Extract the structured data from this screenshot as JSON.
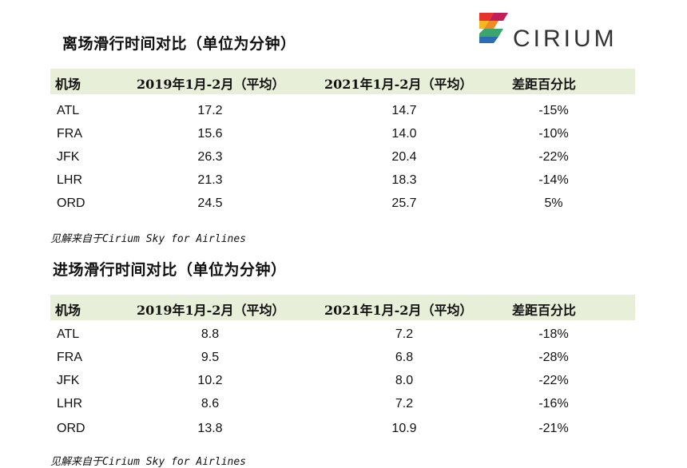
{
  "logo": {
    "text": "CIRIUM",
    "colors": [
      "#e8322e",
      "#f4b71c",
      "#3aa66b",
      "#2b6cb3"
    ]
  },
  "tables": [
    {
      "title": "离场滑行时间对比（单位为分钟）",
      "headers": [
        "机场",
        "2019年1月-2月（平均）",
        "2021年1月-2月（平均）",
        "差距百分比"
      ],
      "rows": [
        [
          "ATL",
          "17.2",
          "14.7",
          "-15%"
        ],
        [
          "FRA",
          "15.6",
          "14.0",
          "-10%"
        ],
        [
          "JFK",
          "26.3",
          "20.4",
          "-22%"
        ],
        [
          "LHR",
          "21.3",
          "18.3",
          "-14%"
        ],
        [
          "ORD",
          "24.5",
          "25.7",
          "5%"
        ]
      ],
      "source": "见解来自于Cirium Sky for Airlines"
    },
    {
      "title": "进场滑行时间对比（单位为分钟）",
      "headers": [
        "机场",
        "2019年1月-2月（平均）",
        "2021年1月-2月（平均）",
        "差距百分比"
      ],
      "rows": [
        [
          "ATL",
          "8.8",
          "7.2",
          "-18%"
        ],
        [
          "FRA",
          "9.5",
          "6.8",
          "-28%"
        ],
        [
          "JFK",
          "10.2",
          "8.0",
          "-22%"
        ],
        [
          "LHR",
          "8.6",
          "7.2",
          "-16%"
        ],
        [
          "ORD",
          "13.8",
          "10.9",
          "-21%"
        ]
      ],
      "source": "见解来自于Cirium Sky for Airlines"
    }
  ]
}
